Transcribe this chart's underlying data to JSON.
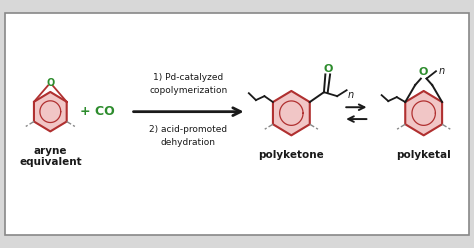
{
  "bg_color": "#d8d8d8",
  "box_color": "#ffffff",
  "box_border": "#888888",
  "dark_color": "#1a1a1a",
  "red_color": "#b03030",
  "green_color": "#2d8c2d",
  "pink_fill": "#e8a0a0",
  "text_label_1": "aryne",
  "text_label_2": "equivalent",
  "text_co": "+ CO",
  "text_step1": "1) Pd-catalyzed",
  "text_step1b": "copolymerization",
  "text_step2": "2) acid-promoted",
  "text_step2b": "dehydration",
  "text_polyketone": "polyketone",
  "text_polyketal": "polyketal",
  "arrow_color": "#1a1a1a"
}
